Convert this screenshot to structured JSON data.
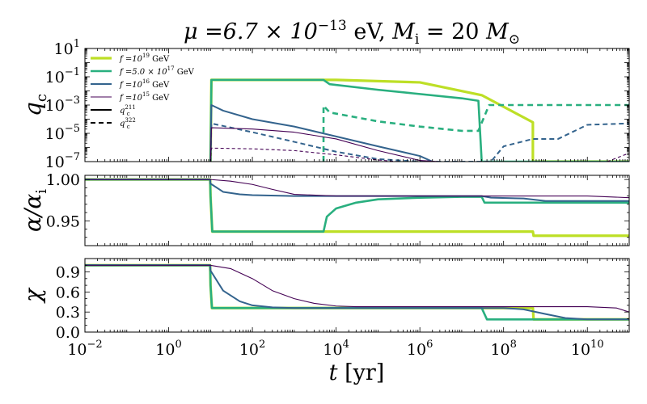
{
  "title": "μ =6.7 × 10⁻¹³ eV,  M_i = 20 M⊙",
  "title_parts": {
    "mu": "μ =6.7 × 10",
    "mu_exp": "−13",
    "unit": " eV,  ",
    "M": "M",
    "M_sub": "i",
    "M_val": " = 20 ",
    "Msun": "M",
    "sun": "⊙"
  },
  "xaxis": {
    "label": "t [yr]",
    "label_var": "t",
    "label_unit": " [yr]",
    "scale": "log",
    "range": [
      0.01,
      100000000000.0
    ],
    "ticks": [
      {
        "base": "10",
        "exp": "−2"
      },
      {
        "base": "10",
        "exp": "0"
      },
      {
        "base": "10",
        "exp": "2"
      },
      {
        "base": "10",
        "exp": "4"
      },
      {
        "base": "10",
        "exp": "6"
      },
      {
        "base": "10",
        "exp": "8"
      },
      {
        "base": "10",
        "exp": "10"
      }
    ]
  },
  "legend": {
    "placement": "top-left",
    "entries": [
      {
        "text": "f =10¹⁹ GeV",
        "pre": "f =10",
        "sup": "19",
        "post": " GeV",
        "color": "#bddf26",
        "width": 3.2,
        "dash": ""
      },
      {
        "text": "f =5.0 × 10¹⁷ GeV",
        "pre": "f =5.0 × 10",
        "sup": "17",
        "post": " GeV",
        "color": "#29af7f",
        "width": 2.6,
        "dash": ""
      },
      {
        "text": "f =10¹⁶ GeV",
        "pre": "f =10",
        "sup": "16",
        "post": " GeV",
        "color": "#33638d",
        "width": 2.0,
        "dash": ""
      },
      {
        "text": "f =10¹⁵ GeV",
        "pre": "f =10",
        "sup": "15",
        "post": " GeV",
        "color": "#440154",
        "width": 1.1,
        "dash": ""
      },
      {
        "text": "q_c^211",
        "pre": "q",
        "sub": "c",
        "sup": "211",
        "post": "",
        "color": "#000000",
        "width": 2.0,
        "dash": ""
      },
      {
        "text": "q_c^322",
        "pre": "q",
        "sub": "c",
        "sup": "322",
        "post": "",
        "color": "#000000",
        "width": 2.0,
        "dash": "6,4"
      }
    ]
  },
  "chart_data": [
    {
      "type": "line",
      "panel": "top",
      "ylabel": "q_c",
      "ylabel_main": "q",
      "ylabel_sub": "c",
      "yscale": "log",
      "ylim": [
        1e-07,
        10
      ],
      "yticks": [
        {
          "base": "10",
          "exp": "1"
        },
        {
          "base": "10",
          "exp": "−1"
        },
        {
          "base": "10",
          "exp": "−3"
        },
        {
          "base": "10",
          "exp": "−5"
        },
        {
          "base": "10",
          "exp": "−7"
        }
      ],
      "series": [
        {
          "legend_index": 0,
          "color": "#bddf26",
          "width": 3.2,
          "dash": "",
          "x": [
            10,
            10.5,
            100,
            10000,
            1000000,
            30000000,
            500000000,
            500000000,
            100000000000
          ],
          "y": [
            1e-07,
            0.06,
            0.06,
            0.06,
            0.04,
            0.005,
            6e-05,
            1e-07,
            1e-07
          ]
        },
        {
          "legend_index": 1,
          "color": "#29af7f",
          "width": 2.6,
          "dash": "",
          "x": [
            10,
            10.5,
            5000,
            7000,
            100000,
            1000000,
            10000000,
            25000000,
            30000000,
            100000000000
          ],
          "y": [
            1e-07,
            0.06,
            0.06,
            0.03,
            0.012,
            0.006,
            0.003,
            0.002,
            1e-07,
            1e-07
          ]
        },
        {
          "legend_index": 1,
          "color": "#29af7f",
          "width": 2.6,
          "dash": "7,5",
          "x": [
            5000,
            5000,
            7000,
            100000,
            1000000,
            10000000,
            25000000,
            45000000,
            100000000000
          ],
          "y": [
            1e-07,
            0.0009,
            0.0003,
            7e-05,
            3e-05,
            1.5e-05,
            1.5e-05,
            0.001,
            0.001
          ]
        },
        {
          "legend_index": 2,
          "color": "#33638d",
          "width": 2.0,
          "dash": "",
          "x": [
            10,
            10.5,
            20,
            100,
            1000,
            10000,
            100000,
            1000000,
            2000000
          ],
          "y": [
            1e-07,
            0.001,
            0.0004,
            0.0001,
            3e-05,
            6e-06,
            1.2e-06,
            2.5e-07,
            1e-07
          ]
        },
        {
          "legend_index": 2,
          "color": "#33638d",
          "width": 2.0,
          "dash": "6,4",
          "x": [
            10,
            10.5,
            100,
            1000,
            10000,
            100000,
            1000000,
            10000000,
            50000000,
            100000000,
            500000000,
            2000000000,
            10000000000,
            100000000000
          ],
          "y": [
            1e-07,
            5e-05,
            1.2e-05,
            2.5e-06,
            5e-07,
            1.5e-07,
            1e-07,
            1e-07,
            1e-07,
            1.2e-06,
            4e-06,
            4e-06,
            4e-05,
            5e-05
          ]
        },
        {
          "legend_index": 3,
          "color": "#440154",
          "width": 1.1,
          "dash": "",
          "x": [
            10,
            10.5,
            100,
            1000,
            10000,
            100000,
            1000000,
            3000000
          ],
          "y": [
            1e-07,
            2.5e-05,
            2e-05,
            1.2e-05,
            4e-06,
            6e-07,
            1.2e-07,
            1e-07
          ]
        },
        {
          "legend_index": 3,
          "color": "#440154",
          "width": 1.1,
          "dash": "4,3",
          "x": [
            10,
            10.5,
            100,
            1000,
            10000,
            100000,
            300000
          ],
          "y": [
            1e-07,
            9e-07,
            8e-07,
            6e-07,
            3e-07,
            1.3e-07,
            1e-07
          ]
        },
        {
          "legend_index": 3,
          "color": "#440154",
          "width": 1.1,
          "dash": "4,3",
          "x": [
            30000000000,
            100000000000
          ],
          "y": [
            1e-07,
            4e-07
          ]
        }
      ]
    },
    {
      "type": "line",
      "panel": "middle",
      "ylabel": "α/α_i",
      "ylabel_main": "α/α",
      "ylabel_sub": "i",
      "yscale": "linear",
      "ylim": [
        0.92,
        1.005
      ],
      "yticks": [
        "1.00",
        "0.95"
      ],
      "series": [
        {
          "legend_index": 0,
          "color": "#bddf26",
          "width": 3.2,
          "dash": "",
          "x": [
            0.01,
            9.8,
            10,
            11,
            500000000,
            520000000,
            100000000000
          ],
          "y": [
            1.0,
            1.0,
            0.98,
            0.937,
            0.937,
            0.932,
            0.932
          ]
        },
        {
          "legend_index": 1,
          "color": "#29af7f",
          "width": 2.6,
          "dash": "",
          "x": [
            0.01,
            9.8,
            10,
            11,
            5000,
            6000,
            10000,
            30000,
            100000,
            1000000,
            10000000,
            30000000,
            35000000,
            100000000000
          ],
          "y": [
            1.0,
            1.0,
            0.98,
            0.937,
            0.937,
            0.955,
            0.965,
            0.972,
            0.976,
            0.978,
            0.979,
            0.979,
            0.972,
            0.972
          ]
        },
        {
          "legend_index": 2,
          "color": "#33638d",
          "width": 2.0,
          "dash": "",
          "x": [
            0.01,
            9.8,
            10,
            20,
            50,
            100,
            1000,
            10000,
            30000000,
            50000000,
            300000000,
            1000000000,
            10000000000,
            100000000000
          ],
          "y": [
            1.0,
            1.0,
            0.995,
            0.985,
            0.982,
            0.981,
            0.98,
            0.98,
            0.98,
            0.978,
            0.977,
            0.974,
            0.974,
            0.974
          ]
        },
        {
          "legend_index": 3,
          "color": "#440154",
          "width": 1.1,
          "dash": "",
          "x": [
            0.01,
            9.8,
            30,
            100,
            300,
            1000,
            10000,
            1000000,
            10000000000,
            100000000000
          ],
          "y": [
            1.0,
            1.0,
            0.998,
            0.994,
            0.988,
            0.982,
            0.98,
            0.98,
            0.98,
            0.978
          ]
        }
      ]
    },
    {
      "type": "line",
      "panel": "bottom",
      "ylabel": "χ",
      "ylabel_main": "χ",
      "yscale": "linear",
      "ylim": [
        0,
        1.1
      ],
      "yticks": [
        "0.9",
        "0.6",
        "0.3",
        "0.0"
      ],
      "series": [
        {
          "legend_index": 0,
          "color": "#bddf26",
          "width": 3.2,
          "dash": "",
          "x": [
            0.01,
            9.8,
            10,
            10.8,
            500000000,
            520000000,
            100000000000
          ],
          "y": [
            1.0,
            1.0,
            0.7,
            0.36,
            0.36,
            0.19,
            0.19
          ]
        },
        {
          "legend_index": 1,
          "color": "#29af7f",
          "width": 2.6,
          "dash": "",
          "x": [
            0.01,
            9.8,
            10,
            10.8,
            30000000,
            40000000,
            100000000000
          ],
          "y": [
            1.0,
            1.0,
            0.7,
            0.36,
            0.36,
            0.19,
            0.19
          ]
        },
        {
          "legend_index": 2,
          "color": "#33638d",
          "width": 2.0,
          "dash": "",
          "x": [
            0.01,
            9.8,
            10,
            20,
            50,
            100,
            300,
            1000,
            100000000,
            300000000,
            1000000000,
            3000000000,
            10000000000,
            100000000000
          ],
          "y": [
            1.0,
            1.0,
            0.92,
            0.62,
            0.46,
            0.4,
            0.37,
            0.36,
            0.36,
            0.34,
            0.27,
            0.21,
            0.19,
            0.19
          ]
        },
        {
          "legend_index": 3,
          "color": "#440154",
          "width": 1.1,
          "dash": "",
          "x": [
            0.01,
            9.8,
            30,
            100,
            300,
            1000,
            3000,
            10000,
            30000,
            1000000,
            10000000000,
            50000000000,
            100000000000
          ],
          "y": [
            1.0,
            1.0,
            0.95,
            0.8,
            0.62,
            0.5,
            0.43,
            0.39,
            0.38,
            0.38,
            0.38,
            0.36,
            0.3
          ]
        }
      ]
    }
  ]
}
